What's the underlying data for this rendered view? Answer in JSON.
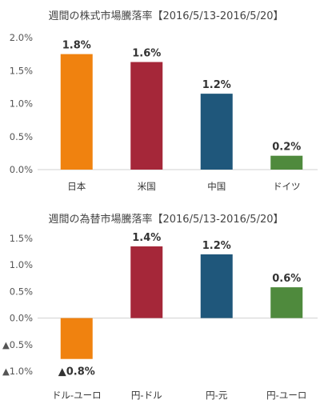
{
  "chart_data": [
    {
      "type": "bar",
      "title": "週間の株式市場騰落率【2016/5/13-2016/5/20】",
      "categories": [
        "日本",
        "米国",
        "中国",
        "ドイツ"
      ],
      "values": [
        1.75,
        1.63,
        1.15,
        0.21
      ],
      "value_labels": [
        "1.8%",
        "1.6%",
        "1.2%",
        "0.2%"
      ],
      "colors": [
        "#F0820F",
        "#A52739",
        "#1F577B",
        "#4F8A3D"
      ],
      "ylim": [
        0,
        2.0
      ],
      "yticks": [
        0,
        0.5,
        1.0,
        1.5,
        2.0
      ],
      "ytick_labels": [
        "0.0%",
        "0.5%",
        "1.0%",
        "1.5%",
        "2.0%"
      ],
      "xlabel": "",
      "ylabel": "",
      "grid": false
    },
    {
      "type": "bar",
      "title": "週間の為替市場騰落率【2016/5/13-2016/5/20】",
      "categories": [
        "ドル-ユーロ",
        "円-ドル",
        "円-元",
        "円-ユーロ"
      ],
      "values": [
        -0.77,
        1.35,
        1.2,
        0.58
      ],
      "value_labels": [
        "▲0.8%",
        "1.4%",
        "1.2%",
        "0.6%"
      ],
      "colors": [
        "#F0820F",
        "#A52739",
        "#1F577B",
        "#4F8A3D"
      ],
      "ylim": [
        -1.0,
        1.5
      ],
      "yticks": [
        -1.0,
        -0.5,
        0,
        0.5,
        1.0,
        1.5
      ],
      "ytick_labels": [
        "▲1.0%",
        "▲0.5%",
        "0.0%",
        "0.5%",
        "1.0%",
        "1.5%"
      ],
      "xlabel": "",
      "ylabel": "",
      "grid": false
    }
  ]
}
